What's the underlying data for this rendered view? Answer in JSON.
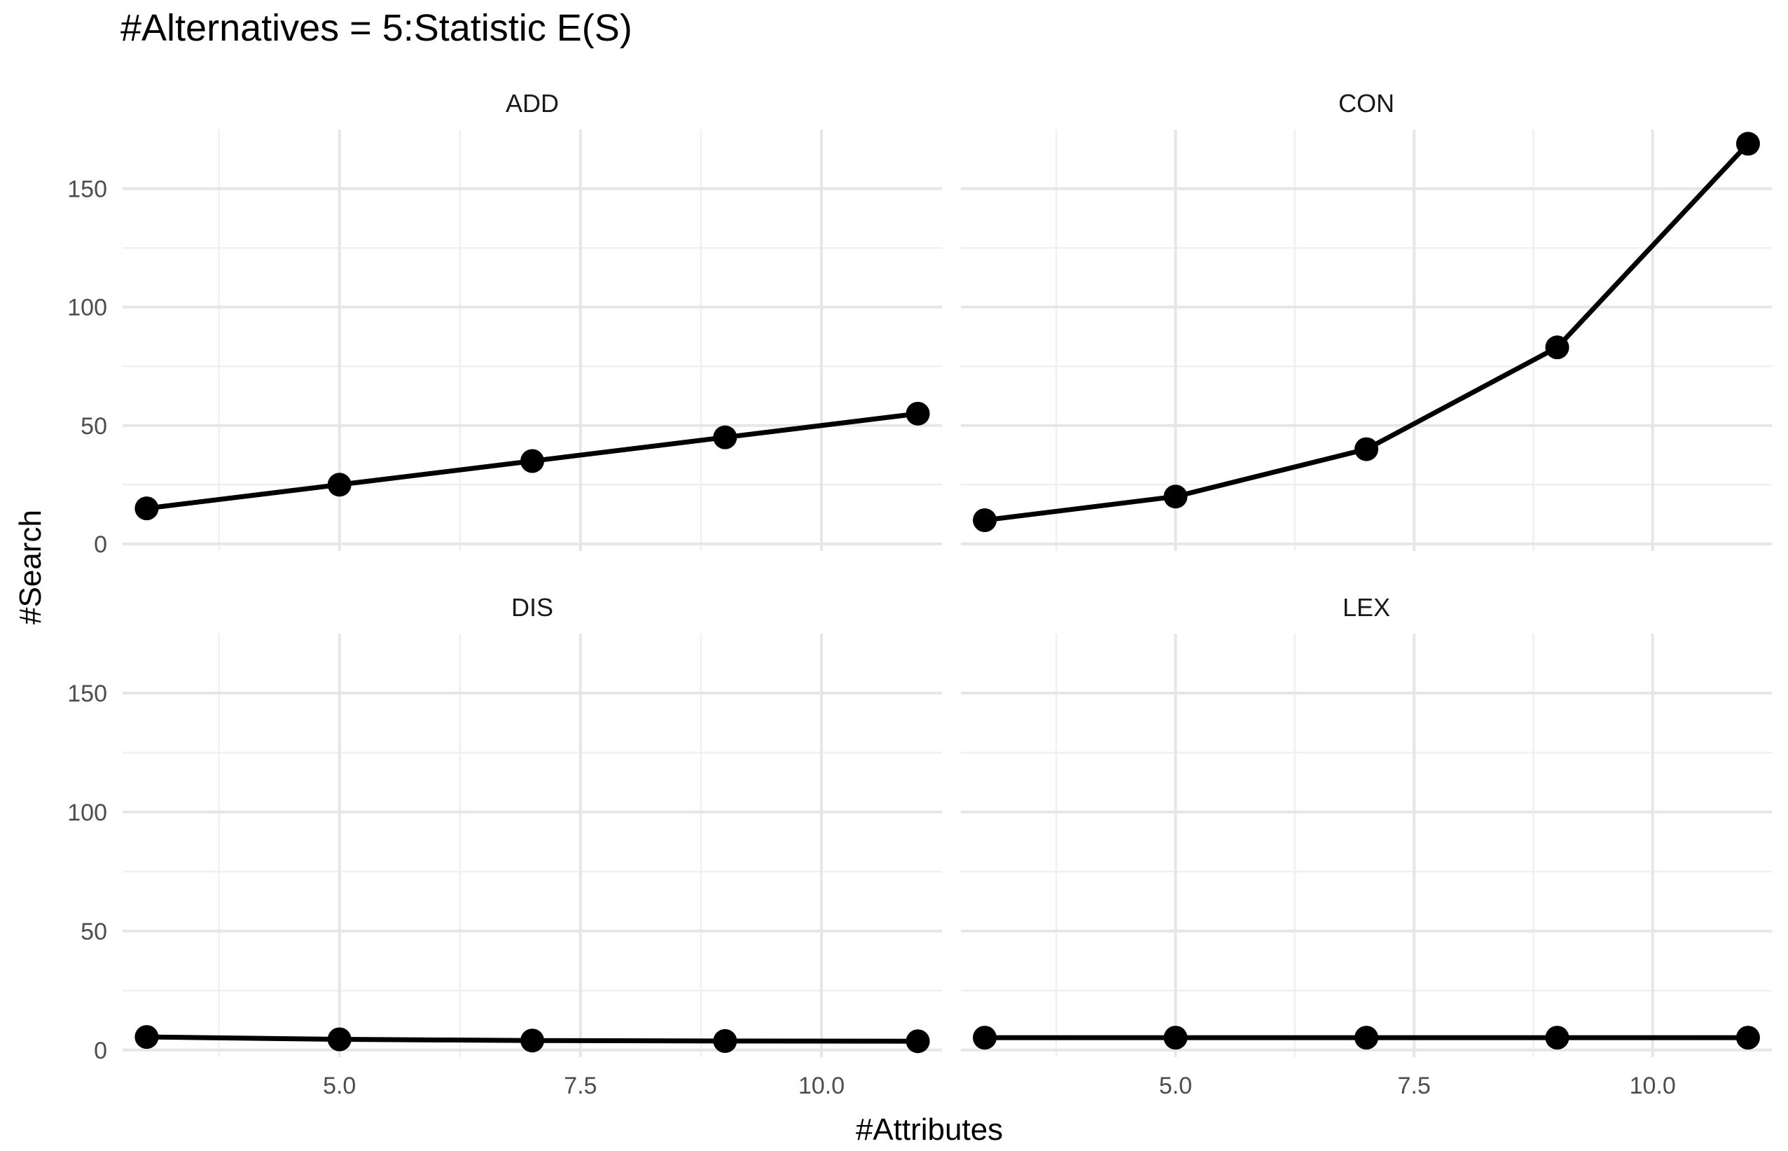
{
  "chart_data": {
    "type": "line",
    "title": "#Alternatives = 5:Statistic E(S)",
    "xlabel": "#Attributes",
    "ylabel": "#Search",
    "xlim": [
      2.75,
      11.25
    ],
    "ylim": [
      -3,
      175
    ],
    "x_ticks": [
      5.0,
      7.5,
      10.0
    ],
    "x_tick_labels": [
      "5.0",
      "7.5",
      "10.0"
    ],
    "y_ticks": [
      0,
      50,
      100,
      150
    ],
    "y_tick_labels": [
      "0",
      "50",
      "100",
      "150"
    ],
    "grid": true,
    "legend": "none",
    "color": "#000000",
    "x": [
      3,
      5,
      7,
      9,
      11
    ],
    "panels": [
      {
        "name": "ADD",
        "values": [
          15,
          25,
          35,
          45,
          55
        ]
      },
      {
        "name": "CON",
        "values": [
          10,
          20,
          40,
          83,
          169
        ]
      },
      {
        "name": "DIS",
        "values": [
          5.5,
          4.5,
          4,
          3.8,
          3.7
        ]
      },
      {
        "name": "LEX",
        "values": [
          5.2,
          5.2,
          5.2,
          5.2,
          5.2
        ]
      }
    ]
  }
}
